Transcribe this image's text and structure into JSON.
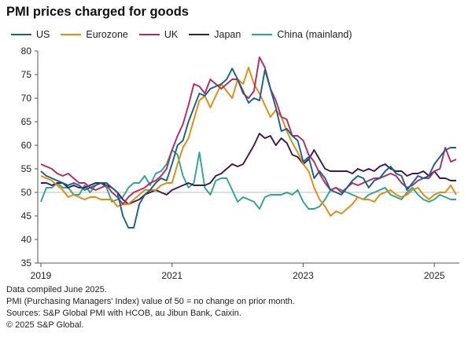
{
  "title": "PMI prices charged for goods",
  "footnotes": [
    "Data compiled June 2025.",
    "PMI (Purchasing Managers' Index) value of 50 = no change on prior month.",
    "Sources: S&P Global PMI with HCOB, au Jibun Bank, Caixin.",
    "© 2025 S&P Global."
  ],
  "chart_data": {
    "type": "line",
    "xlabel": "",
    "ylabel": "",
    "x_range": [
      "2019-01",
      "2025-05"
    ],
    "x_ticks": [
      "2019",
      "2021",
      "2023",
      "2025"
    ],
    "y_range": [
      35,
      80
    ],
    "y_ticks": [
      35,
      40,
      45,
      50,
      55,
      60,
      65,
      70,
      75,
      80
    ],
    "reference_line": 50,
    "grid": false,
    "legend_position": "top",
    "series": [
      {
        "name": "US",
        "color": "#1a5f8a",
        "values": [
          54.5,
          53.5,
          53.0,
          52.5,
          52.0,
          51.5,
          52.0,
          51.5,
          50.5,
          51.0,
          51.5,
          52.0,
          52.0,
          51.0,
          50.0,
          45.0,
          42.5,
          42.5,
          47.5,
          49.5,
          50.5,
          52.0,
          53.0,
          52.5,
          56.0,
          60.0,
          61.0,
          65.0,
          68.0,
          71.0,
          70.5,
          72.0,
          72.5,
          73.0,
          74.0,
          76.3,
          74.0,
          71.5,
          69.0,
          70.0,
          69.5,
          76.0,
          72.0,
          68.0,
          63.0,
          63.5,
          62.0,
          61.0,
          56.5,
          57.5,
          53.0,
          54.5,
          53.0,
          50.5,
          50.0,
          49.5,
          51.0,
          52.5,
          53.5,
          53.0,
          51.0,
          52.5,
          53.0,
          54.5,
          55.5,
          54.0,
          53.5,
          50.5,
          52.0,
          53.5,
          53.0,
          53.5,
          56.0,
          57.5,
          59.0,
          59.5,
          59.5
        ]
      },
      {
        "name": "Eurozone",
        "color": "#e08a10",
        "values": [
          53.5,
          53.0,
          52.5,
          51.5,
          50.5,
          49.0,
          49.5,
          49.0,
          48.5,
          49.0,
          49.0,
          48.5,
          48.5,
          48.5,
          47.0,
          47.5,
          47.5,
          48.5,
          49.5,
          50.5,
          50.5,
          50.5,
          51.5,
          52.0,
          52.0,
          56.0,
          59.5,
          61.5,
          65.5,
          69.5,
          70.5,
          68.0,
          70.5,
          73.0,
          71.5,
          70.0,
          74.0,
          73.0,
          76.5,
          73.0,
          71.0,
          68.5,
          66.0,
          67.5,
          66.0,
          63.0,
          60.5,
          58.5,
          56.0,
          54.5,
          51.0,
          48.5,
          47.0,
          45.0,
          46.0,
          45.5,
          46.5,
          47.5,
          49.0,
          48.5,
          48.5,
          48.0,
          49.5,
          50.0,
          50.5,
          49.5,
          49.0,
          49.5,
          50.5,
          51.0,
          49.5,
          48.5,
          49.5,
          50.0,
          50.0,
          51.5,
          49.5
        ]
      },
      {
        "name": "UK",
        "color": "#b52a64",
        "values": [
          56.0,
          55.5,
          55.0,
          54.0,
          53.5,
          54.0,
          53.0,
          52.0,
          52.0,
          51.0,
          50.5,
          51.0,
          51.5,
          50.0,
          49.0,
          47.5,
          49.0,
          50.0,
          50.5,
          51.0,
          52.0,
          52.5,
          53.5,
          55.0,
          59.0,
          62.0,
          64.5,
          68.5,
          73.0,
          72.5,
          71.0,
          74.0,
          73.0,
          72.0,
          73.0,
          74.0,
          74.0,
          71.0,
          70.0,
          71.5,
          78.7,
          76.5,
          72.0,
          69.5,
          66.0,
          65.5,
          62.0,
          62.0,
          61.0,
          58.0,
          56.5,
          54.0,
          52.0,
          50.5,
          51.0,
          50.0,
          51.0,
          52.0,
          51.5,
          52.0,
          52.5,
          53.0,
          53.0,
          53.5,
          54.0,
          53.5,
          52.0,
          51.0,
          51.5,
          52.5,
          53.0,
          53.0,
          54.5,
          55.0,
          59.5,
          56.5,
          57.0
        ]
      },
      {
        "name": "Japan",
        "color": "#3b1b57",
        "values": [
          52.0,
          52.0,
          51.5,
          52.0,
          52.0,
          51.0,
          51.5,
          51.0,
          51.0,
          51.5,
          52.0,
          52.0,
          51.5,
          51.0,
          50.0,
          48.5,
          47.5,
          48.0,
          48.5,
          49.5,
          50.0,
          50.5,
          50.0,
          49.5,
          50.5,
          51.0,
          51.5,
          52.0,
          51.5,
          51.5,
          51.5,
          52.0,
          53.5,
          54.0,
          55.0,
          56.0,
          55.5,
          56.0,
          58.0,
          60.0,
          62.5,
          61.5,
          62.0,
          60.0,
          61.5,
          60.5,
          58.0,
          57.5,
          56.0,
          57.0,
          59.0,
          57.0,
          55.0,
          54.5,
          54.5,
          54.5,
          54.5,
          54.0,
          55.0,
          54.5,
          55.0,
          54.5,
          55.5,
          56.0,
          55.0,
          54.5,
          54.5,
          53.5,
          54.0,
          54.0,
          54.5,
          53.5,
          54.5,
          53.0,
          53.0,
          52.5,
          52.5
        ]
      },
      {
        "name": "China (mainland)",
        "color": "#2fa58c",
        "values": [
          48.0,
          51.0,
          51.0,
          52.0,
          51.0,
          51.0,
          49.5,
          49.5,
          51.5,
          50.0,
          51.5,
          52.0,
          51.0,
          48.0,
          48.5,
          49.0,
          51.0,
          52.0,
          52.0,
          53.5,
          51.5,
          54.0,
          54.5,
          56.0,
          59.0,
          58.0,
          53.5,
          51.0,
          52.0,
          58.5,
          51.0,
          49.5,
          52.5,
          53.0,
          53.0,
          50.5,
          48.0,
          49.0,
          48.5,
          48.0,
          46.5,
          49.0,
          49.5,
          49.5,
          49.5,
          50.0,
          49.5,
          50.5,
          48.0,
          46.5,
          46.5,
          47.0,
          48.5,
          50.5,
          51.0,
          50.5,
          50.0,
          49.5,
          49.0,
          48.5,
          49.5,
          50.0,
          50.5,
          51.0,
          49.5,
          49.0,
          48.5,
          50.0,
          51.0,
          49.5,
          48.5,
          48.0,
          48.5,
          49.5,
          49.0,
          48.5,
          48.5
        ]
      }
    ]
  }
}
